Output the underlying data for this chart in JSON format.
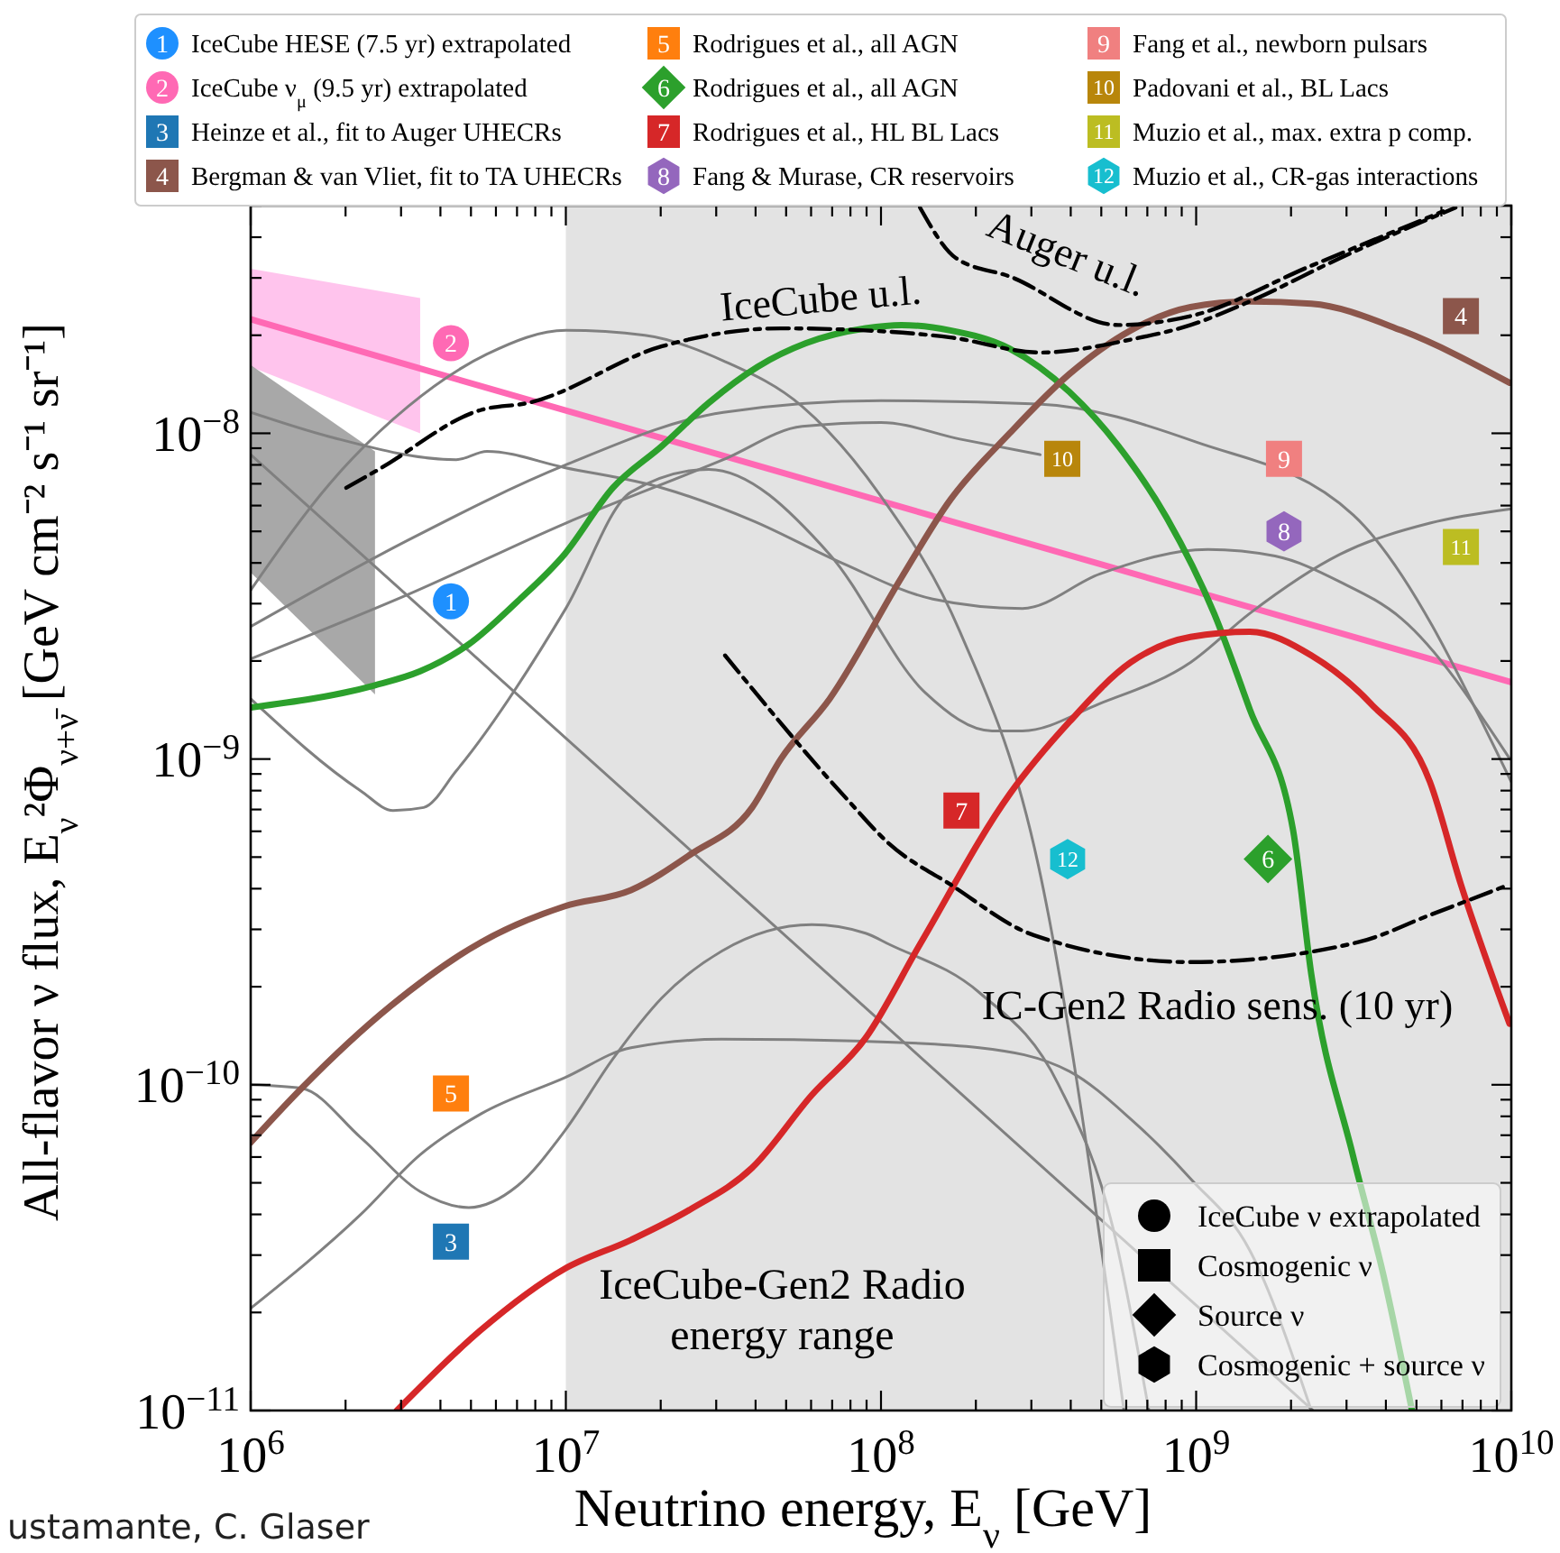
{
  "chart_data": {
    "type": "line",
    "xlabel": "Neutrino energy, E$_{ν}$ [GeV]",
    "ylabel": "All-flavor ν flux, E$_{ν}$²Φ$_{ν+ν̄}$ [GeV cm⁻² s⁻¹ sr⁻¹]",
    "log": "xy",
    "xlim": [
      1000000.0,
      10000000000.0
    ],
    "ylim": [
      1e-11,
      5e-08
    ],
    "xticks": [
      {
        "value": 1000000.0,
        "label": "10$^{6}$"
      },
      {
        "value": 2000000.0,
        "label": null
      },
      {
        "value": 3000000.0,
        "label": null
      },
      {
        "value": 4000000.0,
        "label": null
      },
      {
        "value": 5000000.0,
        "label": null
      },
      {
        "value": 6000000.0,
        "label": null
      },
      {
        "value": 7000000.0,
        "label": null
      },
      {
        "value": 8000000.0,
        "label": null
      },
      {
        "value": 9000000.0,
        "label": null
      },
      {
        "value": 10000000.0,
        "label": "10$^{7}$"
      },
      {
        "value": 20000000.0,
        "label": null
      },
      {
        "value": 30000000.0,
        "label": null
      },
      {
        "value": 40000000.0,
        "label": null
      },
      {
        "value": 50000000.0,
        "label": null
      },
      {
        "value": 60000000.0,
        "label": null
      },
      {
        "value": 70000000.0,
        "label": null
      },
      {
        "value": 80000000.0,
        "label": null
      },
      {
        "value": 90000000.0,
        "label": null
      },
      {
        "value": 100000000.0,
        "label": "10$^{8}$"
      },
      {
        "value": 200000000.0,
        "label": null
      },
      {
        "value": 300000000.0,
        "label": null
      },
      {
        "value": 400000000.0,
        "label": null
      },
      {
        "value": 500000000.0,
        "label": null
      },
      {
        "value": 600000000.0,
        "label": null
      },
      {
        "value": 700000000.0,
        "label": null
      },
      {
        "value": 800000000.0,
        "label": null
      },
      {
        "value": 900000000.0,
        "label": null
      },
      {
        "value": 1000000000.0,
        "label": "10$^{9}$"
      },
      {
        "value": 2000000000.0,
        "label": null
      },
      {
        "value": 3000000000.0,
        "label": null
      },
      {
        "value": 4000000000.0,
        "label": null
      },
      {
        "value": 5000000000.0,
        "label": null
      },
      {
        "value": 6000000000.0,
        "label": null
      },
      {
        "value": 7000000000.0,
        "label": null
      },
      {
        "value": 8000000000.0,
        "label": null
      },
      {
        "value": 9000000000.0,
        "label": null
      },
      {
        "value": 10000000000.0,
        "label": "10$^{10}$"
      }
    ],
    "yticks": [
      {
        "value": 1e-11,
        "label": "10$^{−11}$"
      },
      {
        "value": 2e-11,
        "label": null
      },
      {
        "value": 3e-11,
        "label": null
      },
      {
        "value": 4e-11,
        "label": null
      },
      {
        "value": 5e-11,
        "label": null
      },
      {
        "value": 6e-11,
        "label": null
      },
      {
        "value": 7e-11,
        "label": null
      },
      {
        "value": 8e-11,
        "label": null
      },
      {
        "value": 9e-11,
        "label": null
      },
      {
        "value": 1e-10,
        "label": "10$^{−10}$"
      },
      {
        "value": 2e-10,
        "label": null
      },
      {
        "value": 3e-10,
        "label": null
      },
      {
        "value": 4e-10,
        "label": null
      },
      {
        "value": 5e-10,
        "label": null
      },
      {
        "value": 6e-10,
        "label": null
      },
      {
        "value": 7e-10,
        "label": null
      },
      {
        "value": 8e-10,
        "label": null
      },
      {
        "value": 9e-10,
        "label": null
      },
      {
        "value": 1e-09,
        "label": "10$^{−9}$"
      },
      {
        "value": 2e-09,
        "label": null
      },
      {
        "value": 3e-09,
        "label": null
      },
      {
        "value": 4e-09,
        "label": null
      },
      {
        "value": 5e-09,
        "label": null
      },
      {
        "value": 6e-09,
        "label": null
      },
      {
        "value": 7e-09,
        "label": null
      },
      {
        "value": 8e-09,
        "label": null
      },
      {
        "value": 9e-09,
        "label": null
      },
      {
        "value": 1e-08,
        "label": "10$^{−8}$"
      },
      {
        "value": 2e-08,
        "label": null
      },
      {
        "value": 3e-08,
        "label": null
      },
      {
        "value": 4e-08,
        "label": null
      },
      {
        "value": 5e-08,
        "label": null
      }
    ],
    "legend": "top",
    "bands": [
      {
        "axis": "x",
        "from": 10000000.0,
        "to": 10000000000.0,
        "label": "IceCube-Gen2 Radio energy range",
        "color": "#e3e3e3"
      }
    ],
    "annotations": [
      "IceCube u.l.",
      "Auger u.l.",
      "IC-Gen2 Radio sens. (10 yr)",
      "IceCube ν extrapolated",
      "Cosmogenic ν",
      "Source ν",
      "Cosmogenic + source ν",
      "ustamante, C. Glaser",
      {
        "text": "1",
        "x": 4320000.0,
        "y": 3.05e-09
      },
      {
        "text": "2",
        "x": 4320000.0,
        "y": 1.89e-08
      },
      {
        "text": "3",
        "x": 4320000.0,
        "y": 3.3e-11
      },
      {
        "text": "4",
        "x": 6920000000.0,
        "y": 2.29e-08
      },
      {
        "text": "5",
        "x": 4320000.0,
        "y": 9.4e-11
      },
      {
        "text": "6",
        "x": 1690000000.0,
        "y": 4.93e-10
      },
      {
        "text": "7",
        "x": 180000000.0,
        "y": 6.95e-10
      },
      {
        "text": "8",
        "x": 1900000000.0,
        "y": 5e-09
      },
      {
        "text": "9",
        "x": 1900000000.0,
        "y": 8.35e-09
      },
      {
        "text": "10",
        "x": 376000000.0,
        "y": 8.35e-09
      },
      {
        "text": "11",
        "x": 6920000000.0,
        "y": 4.48e-09
      },
      {
        "text": "12",
        "x": 391000000.0,
        "y": 4.93e-10
      }
    ],
    "series": [
      {
        "color": "#ff69b4",
        "x": [
          1000000.0,
          3450000.0,
          10000000000.0
        ],
        "values": [
          2.24e-08,
          1.58e-08,
          1.72e-09
        ],
        "lower": [
          1.6e-08,
          1e-08,
          null
        ],
        "upper": [
          3.2e-08,
          2.6e-08,
          null
        ]
      },
      {
        "type": "line",
        "color": "#808080",
        "x": [
          1000000.0,
          2480000.0,
          2350000000.0
        ],
        "values": [
          8.6e-09,
          3.9e-09,
          1e-11
        ],
        "lower": [
          3.74e-09,
          1.58e-09,
          null
        ],
        "upper": [
          1.62e-08,
          8.8e-09,
          null
        ]
      },
      {
        "type": "line",
        "color": "#808080",
        "x": [
          1000000.0,
          1780000.0,
          3160000.0,
          5620000.0,
          10000000.0,
          17800000.0,
          31600000.0,
          56200000.0,
          100000000.0,
          178000000.0,
          316000000.0,
          590000000.0
        ],
        "values": [
          3.3e-09,
          7e-09,
          1.21e-08,
          1.75e-08,
          2.07e-08,
          2e-08,
          1.67e-08,
          1.21e-08,
          6.4e-09,
          2.46e-09,
          4.7e-10,
          1e-11
        ]
      },
      {
        "type": "line",
        "color": "#808080",
        "x": [
          1000000.0,
          3160000.0,
          10000000.0,
          31600000.0,
          100000000.0,
          316000000.0,
          1000000000.0,
          3160000000.0,
          10000000000.0
        ],
        "values": [
          2.55e-09,
          4.7e-09,
          8e-09,
          1.16e-08,
          1.26e-08,
          1.23e-08,
          9.4e-09,
          5.6e-09,
          8.5e-10
        ]
      },
      {
        "type": "line",
        "color": "#808080",
        "x": [
          1000000.0,
          3160000.0,
          10000000.0,
          31600000.0,
          56200000.0,
          100000000.0,
          178000000.0,
          320000000.0
        ],
        "values": [
          2.03e-09,
          3.2e-09,
          5.3e-09,
          8.3e-09,
          1.05e-08,
          1.08e-08,
          9.6e-09,
          8.6e-09
        ]
      },
      {
        "type": "line",
        "color": "#808080",
        "x": [
          1000000.0,
          1790000.0,
          4490000.0,
          5620000.0,
          9900000.0,
          20200000.0,
          39000000.0,
          75000000.0,
          146000000.0,
          281000000.0,
          495000000.0,
          1090000000.0,
          1780000000.0,
          2860000000.0,
          4480000000.0,
          9900000000.0
        ],
        "values": [
          1.16e-08,
          9.75e-09,
          8.3e-09,
          8.8e-09,
          7.85e-09,
          6.8e-09,
          5.4e-09,
          4e-09,
          3.1e-09,
          2.9e-09,
          3.7e-09,
          4.4e-09,
          4.2e-09,
          3.5e-09,
          2.7e-09,
          1e-09
        ]
      },
      {
        "type": "line",
        "color": "#808080",
        "x": [
          1000000.0,
          2230000.0,
          2830000.0,
          3540000.0,
          4490000.0,
          10000000.0,
          16100000.0,
          28400000.0,
          68700000.0,
          138000000.0,
          225000000.0,
          281000000.0,
          495000000.0,
          960000000.0,
          1480000000.0,
          2860000000.0,
          5520000000.0,
          9870000000.0
        ],
        "values": [
          1.53e-09,
          8e-10,
          6.95e-10,
          7.1e-10,
          9.2e-10,
          2.9e-09,
          6.6e-09,
          7.75e-09,
          4.25e-09,
          1.6e-09,
          1.22e-09,
          1.22e-09,
          1.48e-09,
          1.98e-09,
          2.8e-09,
          4.25e-09,
          5.3e-09,
          5.85e-09
        ]
      },
      {
        "type": "line",
        "color": "#808080",
        "x": [
          1000000.0,
          1450000.0,
          2230000.0,
          3450000.0,
          4920000.0,
          7030000.0,
          9900000.0,
          14100000.0,
          20200000.0,
          31200000.0,
          60300000.0,
          89300000.0,
          106000000.0,
          205000000.0,
          366000000.0,
          544000000.0,
          708000000.0
        ],
        "values": [
          1e-10,
          9.75e-11,
          6.9e-11,
          4.7e-11,
          4.2e-11,
          4.9e-11,
          7.2e-11,
          1.2e-10,
          1.85e-10,
          2.57e-10,
          3.1e-10,
          2.92e-10,
          2.7e-10,
          1.92e-10,
          1e-10,
          3.65e-11,
          1e-11
        ]
      },
      {
        "type": "line",
        "color": "#808080",
        "x": [
          1000000.0,
          2230000.0,
          3450000.0,
          5390000.0,
          9900000.0,
          16100000.0,
          31200000.0,
          89300000.0,
          205000000.0,
          396000000.0,
          620000000.0,
          960000000.0,
          1480000000.0,
          2320000000.0
        ],
        "values": [
          2.06e-11,
          3.99e-11,
          6.1e-11,
          8.15e-11,
          1.05e-10,
          1.3e-10,
          1.38e-10,
          1.36e-10,
          1.3e-10,
          1.1e-10,
          7.85e-11,
          5.15e-11,
          3.1e-11,
          1e-11
        ]
      },
      {
        "type": "line",
        "color": "#2ca02c",
        "x": [
          1000000.0,
          2450000.0,
          3450000.0,
          4920000.0,
          7030000.0,
          9900000.0,
          14100000.0,
          20200000.0,
          28400000.0,
          40600000.0,
          57800000.0,
          89300000.0,
          116000000.0,
          166000000.0,
          256000000.0,
          396000000.0,
          566000000.0,
          807000000.0,
          1140000000.0,
          1480000000.0,
          2030000000.0,
          2320000000.0,
          3140000000.0,
          3930000000.0,
          4840000000.0
        ],
        "values": [
          1.44e-09,
          1.68e-09,
          1.86e-09,
          2.25e-09,
          3.05e-09,
          4.25e-09,
          6.8e-09,
          9.15e-09,
          1.24e-08,
          1.6e-08,
          1.89e-08,
          2.1e-08,
          2.15e-08,
          2.07e-08,
          1.82e-08,
          1.34e-08,
          9.15e-09,
          5.5e-09,
          2.8e-09,
          1.42e-09,
          6.05e-10,
          2.18e-10,
          6.1e-11,
          2.6e-11,
          1e-11
        ]
      },
      {
        "type": "line",
        "color": "#8c564b",
        "x": [
          1000000.0,
          1450000.0,
          2790000.0,
          5390000.0,
          9900000.0,
          16100000.0,
          24900000.0,
          39000000.0,
          48100000.0,
          68700000.0,
          116000000.0,
          166000000.0,
          256000000.0,
          396000000.0,
          620000000.0,
          960000000.0,
          1480000000.0,
          2320000000.0,
          4480000000.0,
          9870000000.0
        ],
        "values": [
          6.65e-11,
          9.75e-11,
          1.75e-10,
          2.74e-10,
          3.53e-10,
          3.96e-10,
          5.1e-10,
          7.1e-10,
          1e-09,
          1.53e-09,
          3.6e-09,
          6.25e-09,
          1e-08,
          1.52e-08,
          2.07e-08,
          2.44e-08,
          2.54e-08,
          2.5e-08,
          2.07e-08,
          1.43e-08
        ]
      },
      {
        "type": "line",
        "color": "#d62728",
        "x": [
          2910000.0,
          5390000.0,
          9900000.0,
          16100000.0,
          24900000.0,
          39000000.0,
          60300000.0,
          89300000.0,
          133000000.0,
          256000000.0,
          396000000.0,
          620000000.0,
          960000000.0,
          1480000000.0,
          2320000000.0,
          3580000000.0,
          5520000000.0,
          6920000000.0,
          9870000000.0
        ],
        "values": [
          1e-11,
          1.77e-11,
          2.72e-11,
          3.34e-11,
          4.15e-11,
          5.56e-11,
          9.3e-11,
          1.39e-10,
          2.7e-10,
          7.8e-10,
          1.3e-09,
          1.98e-09,
          2.37e-09,
          2.46e-09,
          2.08e-09,
          1.48e-09,
          8.5e-10,
          4.12e-10,
          1.54e-10
        ]
      },
      {
        "type": "line",
        "color": "#000000",
        "line_style": "dashed",
        "x": [
          2010000.0,
          2550000.0,
          5390000.0,
          7600000.0,
          20200000.0,
          48100000.0,
          89300000.0,
          166000000.0,
          320000000.0,
          620000000.0,
          960000000.0,
          1480000000.0,
          2860000000.0,
          6650000000.0
        ],
        "values": [
          6.8e-09,
          7.75e-09,
          1.18e-08,
          1.24e-08,
          1.85e-08,
          2.1e-08,
          2.07e-08,
          1.97e-08,
          1.77e-08,
          1.94e-08,
          2.15e-08,
          2.54e-08,
          3.45e-08,
          4.93e-08
        ]
      },
      {
        "type": "line",
        "color": "#000000",
        "line_style": "dashed",
        "x": [
          133000000.0,
          173000000.0,
          256000000.0,
          566000000.0,
          960000000.0,
          2320000000.0,
          6070000000.0
        ],
        "values": [
          4.93e-08,
          3.45e-08,
          3.03e-08,
          2.15e-08,
          2.29e-08,
          3.27e-08,
          4.8e-08
        ]
      },
      {
        "type": "line",
        "color": "#000000",
        "line_style": "dashed",
        "x": [
          32000000.0,
          78300000.0,
          106000000.0,
          166000000.0,
          305000000.0,
          960000000.0,
          3270000000.0,
          5520000000.0,
          9870000000.0
        ],
        "values": [
          2.08e-09,
          7.5e-10,
          5.5e-10,
          4.12e-10,
          2.88e-10,
          2.38e-10,
          2.74e-10,
          3.32e-10,
          4.12e-10
        ]
      },
      {
        "type": "scatter",
        "name": "IceCube HESE (7.5 yr) extrapolated",
        "color": "#1e90ff",
        "marker": "circle",
        "x": [
          4320000.0
        ],
        "values": [
          3.05e-09
        ]
      },
      {
        "type": "scatter",
        "name": "IceCube ν$_{μ}$ (9.5 yr) extrapolated",
        "color": "#ff69b4",
        "marker": "circle",
        "x": [
          4320000.0
        ],
        "values": [
          1.89e-08
        ]
      },
      {
        "type": "scatter",
        "name": "Heinze et al., fit to Auger UHECRs",
        "color": "#1f77b4",
        "marker": "square",
        "x": [
          4320000.0
        ],
        "values": [
          3.3e-11
        ]
      },
      {
        "type": "scatter",
        "name": "Bergman & van Vliet, fit to TA UHECRs",
        "color": "#8c564b",
        "marker": "square",
        "x": [
          6920000000.0
        ],
        "values": [
          2.29e-08
        ]
      },
      {
        "type": "scatter",
        "name": "Rodrigues et al., all AGN",
        "color": "#ff7f0e",
        "marker": "square",
        "x": [
          4320000.0
        ],
        "values": [
          9.4e-11
        ]
      },
      {
        "type": "scatter",
        "name": "Rodrigues et al., all AGN",
        "color": "#2ca02c",
        "marker": "diamond",
        "x": [
          1690000000.0
        ],
        "values": [
          4.93e-10
        ]
      },
      {
        "type": "scatter",
        "name": "Rodrigues et al., HL BL Lacs",
        "color": "#d62728",
        "marker": "square",
        "x": [
          180000000.0
        ],
        "values": [
          6.95e-10
        ]
      },
      {
        "type": "scatter",
        "name": "Fang & Murase, CR reservoirs",
        "color": "#9467bd",
        "x": [
          1900000000.0
        ],
        "values": [
          5e-09
        ]
      },
      {
        "type": "scatter",
        "name": "Fang et al., newborn pulsars",
        "color": "#f08080",
        "marker": "square",
        "x": [
          1900000000.0
        ],
        "values": [
          8.35e-09
        ]
      },
      {
        "type": "scatter",
        "name": "Padovani et al., BL Lacs",
        "color": "#b8860b",
        "marker": "square",
        "x": [
          376000000.0
        ],
        "values": [
          8.35e-09
        ]
      },
      {
        "type": "scatter",
        "name": "Muzio et al., max. extra p comp.",
        "color": "#bcbd22",
        "marker": "square",
        "x": [
          6920000000.0
        ],
        "values": [
          4.48e-09
        ]
      },
      {
        "type": "scatter",
        "name": "Muzio et al., CR-gas interactions",
        "color": "#17becf",
        "x": [
          391000000.0
        ],
        "values": [
          4.93e-10
        ]
      }
    ]
  }
}
